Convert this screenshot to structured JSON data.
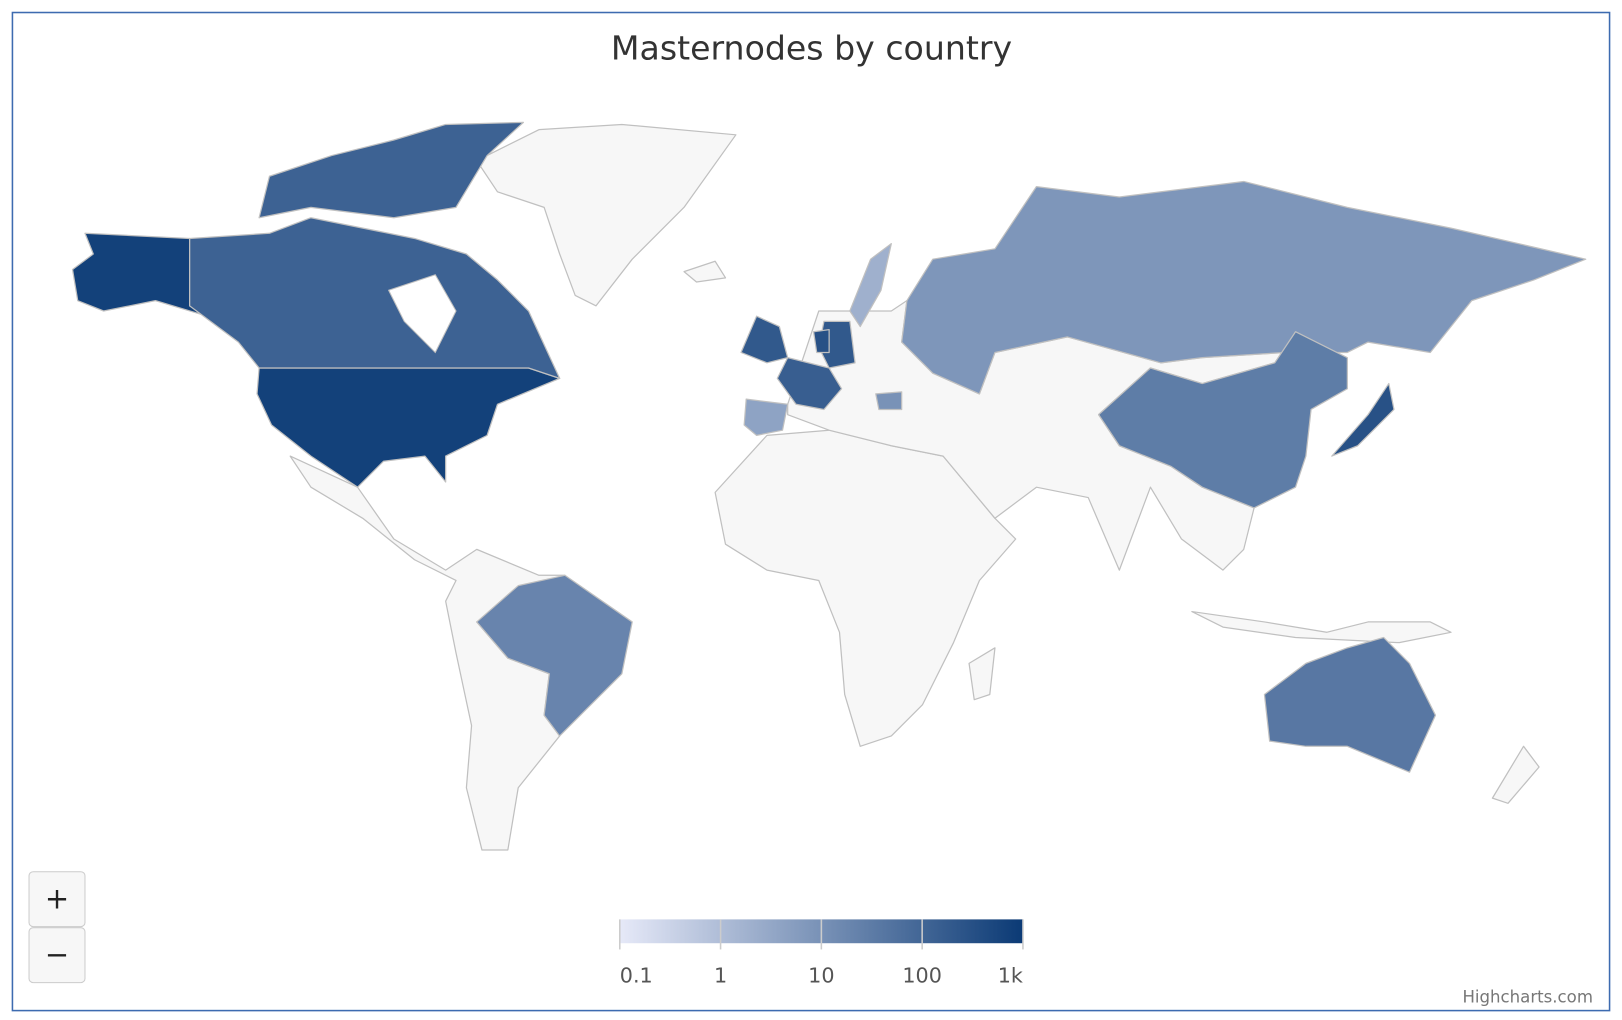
{
  "chart_data": {
    "type": "map",
    "title": "Masternodes by country",
    "values": [
      700,
      120,
      20,
      200,
      150,
      200,
      4,
      2,
      8,
      30,
      300,
      40,
      300,
      10
    ],
    "color_axis": {
      "log": true,
      "range": [
        0.1,
        1000
      ],
      "ticks": [
        0.1,
        1,
        10,
        100,
        {
          "value": 1000,
          "label": "1k"
        }
      ],
      "min_color": "#e6e9f8",
      "max_color": "#0b3a75"
    },
    "null_color": "#f7f7f7",
    "credits": "Highcharts.com",
    "zoom_in": "+",
    "zoom_out": "−"
  }
}
